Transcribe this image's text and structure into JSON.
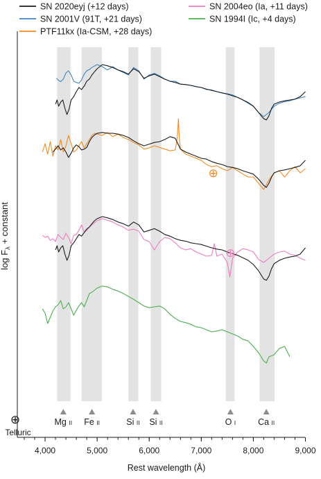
{
  "chart_data": {
    "type": "line",
    "xlabel": "Rest wavelength (Å)",
    "ylabel_main": "log F",
    "ylabel_subscript": "λ",
    "ylabel_rest": " + constant",
    "xlim": [
      3600,
      9100
    ],
    "xticks": [
      {
        "value": 4000,
        "label": "4,000"
      },
      {
        "value": 5000,
        "label": "5,000"
      },
      {
        "value": 6000,
        "label": "6,000"
      },
      {
        "value": 7000,
        "label": "7,000"
      },
      {
        "value": 8000,
        "label": "8,000"
      },
      {
        "value": 9000,
        "label": "9,000"
      }
    ],
    "minor_xtick_step": 200,
    "legend": [
      {
        "label": "SN 2020eyj (+12 days)",
        "color": "#1a1a1a",
        "column": "left"
      },
      {
        "label": "SN 2001V (91T, +21 days)",
        "color": "#3f86c4",
        "column": "left"
      },
      {
        "label": "PTF11kx (Ia-CSM, +28 days)",
        "color": "#f28a1e",
        "column": "left"
      },
      {
        "label": "SN 2004eo (Ia, +11 days)",
        "color": "#f07cc0",
        "column": "right"
      },
      {
        "label": "SN 1994I (Ic, +4 days)",
        "color": "#4cae4f",
        "column": "right"
      }
    ],
    "bands": [
      {
        "x0": 4230,
        "x1": 4490
      },
      {
        "x0": 4700,
        "x1": 5090
      },
      {
        "x0": 5600,
        "x1": 5790
      },
      {
        "x0": 6030,
        "x1": 6230
      },
      {
        "x0": 7470,
        "x1": 7640
      },
      {
        "x0": 8120,
        "x1": 8410
      }
    ],
    "ion_labels": [
      {
        "element": "Mg",
        "ion": "II",
        "x": 4350
      },
      {
        "element": "Fe",
        "ion": "II",
        "x": 4900
      },
      {
        "element": "Si",
        "ion": "II",
        "x": 5690
      },
      {
        "element": "Si",
        "ion": "II",
        "x": 6130
      },
      {
        "element": "O",
        "ion": "I",
        "x": 7560
      },
      {
        "element": "Ca",
        "ion": "II",
        "x": 8250
      }
    ],
    "telluric_label": "Telluric",
    "telluric_symbol": "⊕",
    "telluric_marks": [
      {
        "spectrum": "PTF11kx",
        "x": 7230,
        "color": "#f28a1e"
      },
      {
        "spectrum": "SN 2004eo",
        "x": 7560,
        "color": "#f07cc0"
      }
    ],
    "series": [
      {
        "name": "SN 2001V",
        "color": "#3f86c4",
        "x": [
          4220,
          4250,
          4300,
          4350,
          4400,
          4450,
          4500,
          4550,
          4600,
          4650,
          4700,
          4750,
          4800,
          4850,
          4900,
          5000,
          5100,
          5200,
          5300,
          5400,
          5500,
          5600,
          5700,
          5800,
          5900,
          6000,
          6100,
          6200,
          6300,
          6400,
          6500,
          6600,
          6700,
          6800,
          6900,
          7000,
          7100,
          7200,
          7300,
          7400,
          7500,
          7600,
          7700,
          7800,
          7900,
          8000,
          8100,
          8200,
          8300,
          8400,
          8500,
          8600,
          8700,
          8800,
          8900,
          9000
        ],
        "y": [
          0.62,
          0.58,
          0.54,
          0.6,
          0.75,
          0.8,
          0.7,
          0.55,
          0.52,
          0.5,
          0.58,
          0.72,
          0.8,
          0.83,
          0.88,
          0.95,
          0.9,
          0.82,
          0.9,
          0.82,
          0.76,
          0.7,
          0.88,
          0.8,
          0.6,
          0.7,
          0.74,
          0.68,
          0.6,
          0.55,
          0.55,
          0.48,
          0.47,
          0.45,
          0.42,
          0.4,
          0.35,
          0.34,
          0.3,
          0.27,
          0.25,
          0.22,
          0.16,
          0.1,
          0.02,
          -0.05,
          -0.2,
          -0.3,
          -0.2,
          -0.05,
          0.02,
          0.06,
          0.08,
          0.12,
          0.15,
          0.18
        ]
      },
      {
        "name": "SN 2020eyj",
        "color": "#1a1a1a",
        "x": [
          4200,
          4230,
          4260,
          4300,
          4340,
          4380,
          4420,
          4460,
          4500,
          4550,
          4600,
          4650,
          4700,
          4760,
          4800,
          4850,
          4900,
          4950,
          5000,
          5100,
          5200,
          5300,
          5400,
          5500,
          5600,
          5700,
          5800,
          5900,
          6000,
          6100,
          6200,
          6300,
          6400,
          6500,
          6600,
          6700,
          6800,
          6900,
          7000,
          7100,
          7200,
          7300,
          7400,
          7500,
          7600,
          7700,
          7800,
          7900,
          8000,
          8100,
          8200,
          8250,
          8300,
          8350,
          8400,
          8500,
          8600,
          8700,
          8800,
          8900,
          9000
        ],
        "y": [
          0.0,
          0.1,
          -0.05,
          0.05,
          0.1,
          -0.1,
          -0.25,
          -0.12,
          0.1,
          0.18,
          0.3,
          0.4,
          0.35,
          0.45,
          0.55,
          0.6,
          0.7,
          0.78,
          0.85,
          0.95,
          0.92,
          0.88,
          0.82,
          0.78,
          0.72,
          0.85,
          0.78,
          0.62,
          0.68,
          0.72,
          0.66,
          0.6,
          0.55,
          0.52,
          0.48,
          0.47,
          0.45,
          0.42,
          0.4,
          0.36,
          0.33,
          0.3,
          0.27,
          0.24,
          0.2,
          0.16,
          0.1,
          0.04,
          -0.05,
          -0.2,
          -0.35,
          -0.38,
          -0.28,
          -0.1,
          0.0,
          0.05,
          0.08,
          0.1,
          0.12,
          0.18,
          0.3
        ]
      },
      {
        "name": "PTF11kx",
        "color": "#f28a1e",
        "x": [
          3950,
          4000,
          4050,
          4100,
          4150,
          4200,
          4250,
          4300,
          4350,
          4400,
          4450,
          4500,
          4550,
          4600,
          4650,
          4700,
          4750,
          4800,
          4850,
          4900,
          4950,
          5000,
          5100,
          5200,
          5300,
          5400,
          5500,
          5600,
          5700,
          5800,
          5900,
          6000,
          6100,
          6200,
          6300,
          6400,
          6500,
          6540,
          6560,
          6580,
          6600,
          6700,
          6800,
          6900,
          7000,
          7100,
          7200,
          7300,
          7400,
          7500,
          7600,
          7700,
          7800,
          7900,
          8000,
          8100,
          8200,
          8300,
          8400,
          8500,
          8600,
          8700,
          8800,
          8900,
          9000
        ],
        "y": [
          0.55,
          0.75,
          0.5,
          0.8,
          0.45,
          0.7,
          0.6,
          0.85,
          0.55,
          0.7,
          0.95,
          0.75,
          0.55,
          0.6,
          0.7,
          0.8,
          0.65,
          0.75,
          0.85,
          0.95,
          1.0,
          0.98,
          0.95,
          1.02,
          0.92,
          0.98,
          0.9,
          0.85,
          0.78,
          0.72,
          0.62,
          0.65,
          0.7,
          0.66,
          0.62,
          0.58,
          0.6,
          0.9,
          1.35,
          0.85,
          0.62,
          0.5,
          0.45,
          0.4,
          0.35,
          0.25,
          0.2,
          0.22,
          0.15,
          0.1,
          0.18,
          0.1,
          0.02,
          -0.05,
          -0.05,
          -0.2,
          -0.35,
          -0.12,
          0.05,
          0.1,
          -0.05,
          0.1,
          0.2,
          0.05,
          0.15
        ]
      },
      {
        "name": "SN 2020eyj",
        "color": "#1a1a1a",
        "x": [
          4150,
          4200,
          4250,
          4300,
          4350,
          4400,
          4450,
          4500,
          4550,
          4600,
          4650,
          4700,
          4750,
          4800,
          4850,
          4900,
          4950,
          5000,
          5100,
          5200,
          5300,
          5400,
          5500,
          5600,
          5700,
          5800,
          5900,
          6000,
          6100,
          6200,
          6300,
          6400,
          6500,
          6600,
          6700,
          6800,
          6900,
          7000,
          7100,
          7200,
          7300,
          7400,
          7500,
          7600,
          7700,
          7800,
          7900,
          8000,
          8100,
          8200,
          8250,
          8300,
          8350,
          8400,
          8500,
          8600,
          8700,
          8800,
          8900,
          9000
        ],
        "y": [
          0.55,
          0.62,
          0.7,
          0.6,
          0.65,
          0.55,
          0.42,
          0.52,
          0.65,
          0.72,
          0.68,
          0.6,
          0.62,
          0.66,
          0.8,
          0.9,
          0.96,
          1.0,
          1.02,
          1.0,
          1.0,
          0.98,
          0.95,
          0.9,
          0.82,
          0.75,
          0.7,
          0.74,
          0.78,
          0.8,
          0.85,
          0.92,
          0.88,
          0.62,
          0.55,
          0.5,
          0.45,
          0.4,
          0.38,
          0.32,
          0.28,
          0.25,
          0.2,
          0.18,
          0.15,
          0.1,
          0.06,
          0.02,
          -0.1,
          -0.25,
          -0.3,
          -0.2,
          -0.05,
          0.05,
          0.1,
          0.12,
          0.15,
          0.18,
          0.22,
          0.35
        ]
      },
      {
        "name": "SN 2004eo",
        "color": "#f07cc0",
        "x": [
          3950,
          4000,
          4050,
          4100,
          4150,
          4200,
          4250,
          4300,
          4350,
          4400,
          4450,
          4500,
          4550,
          4600,
          4650,
          4700,
          4750,
          4800,
          4850,
          4900,
          5000,
          5100,
          5200,
          5300,
          5400,
          5500,
          5600,
          5700,
          5800,
          5900,
          6000,
          6100,
          6200,
          6300,
          6400,
          6500,
          6600,
          6700,
          6800,
          6900,
          7000,
          7100,
          7200,
          7250,
          7300,
          7400,
          7500,
          7550,
          7600,
          7700,
          7800,
          7900,
          8000,
          8100,
          8200,
          8300,
          8400,
          8500,
          8600,
          8700,
          8800,
          8900,
          9000
        ],
        "y": [
          0.6,
          0.55,
          0.58,
          0.48,
          0.52,
          0.45,
          0.62,
          0.55,
          0.5,
          0.65,
          0.55,
          0.4,
          0.6,
          0.62,
          0.72,
          0.85,
          0.68,
          0.72,
          0.8,
          0.85,
          0.95,
          1.0,
          0.96,
          0.92,
          0.85,
          0.8,
          0.72,
          0.75,
          0.7,
          0.5,
          0.45,
          0.25,
          0.45,
          0.55,
          0.52,
          0.42,
          0.3,
          0.25,
          0.28,
          0.2,
          0.15,
          0.1,
          0.12,
          0.4,
          0.1,
          0.15,
          -0.05,
          -0.4,
          0.05,
          0.2,
          0.28,
          0.25,
          0.2,
          0.02,
          -0.05,
          0.05,
          0.15,
          0.2,
          0.22,
          0.15,
          0.12,
          0.05,
          0.0
        ]
      },
      {
        "name": "SN 2020eyj",
        "color": "#1a1a1a",
        "x": [
          4200,
          4230,
          4260,
          4300,
          4340,
          4380,
          4420,
          4460,
          4500,
          4550,
          4600,
          4650,
          4700,
          4760,
          4800,
          4850,
          4900,
          4950,
          5000,
          5100,
          5200,
          5300,
          5400,
          5500,
          5600,
          5700,
          5800,
          5900,
          6000,
          6100,
          6200,
          6300,
          6400,
          6500,
          6600,
          6700,
          6800,
          6900,
          7000,
          7100,
          7200,
          7300,
          7400,
          7500,
          7600,
          7700,
          7800,
          7900,
          8000,
          8100,
          8200,
          8250,
          8300,
          8350,
          8400,
          8500,
          8600,
          8700,
          8800,
          8900,
          9000
        ],
        "y": [
          0.25,
          0.35,
          0.2,
          0.3,
          0.35,
          0.15,
          0.0,
          0.12,
          0.35,
          0.42,
          0.52,
          0.62,
          0.58,
          0.68,
          0.75,
          0.8,
          0.88,
          0.95,
          1.0,
          1.05,
          1.02,
          0.98,
          0.92,
          0.88,
          0.82,
          0.92,
          0.85,
          0.68,
          0.72,
          0.76,
          0.7,
          0.62,
          0.58,
          0.52,
          0.48,
          0.46,
          0.42,
          0.4,
          0.38,
          0.34,
          0.3,
          0.27,
          0.25,
          0.2,
          0.16,
          0.12,
          0.06,
          0.0,
          -0.1,
          -0.25,
          -0.45,
          -0.48,
          -0.38,
          -0.2,
          -0.08,
          0.0,
          0.05,
          0.08,
          0.1,
          0.15,
          0.3
        ]
      },
      {
        "name": "SN 1994I",
        "color": "#4cae4f",
        "x": [
          3950,
          4000,
          4050,
          4100,
          4150,
          4200,
          4250,
          4300,
          4350,
          4400,
          4450,
          4500,
          4550,
          4600,
          4650,
          4700,
          4750,
          4800,
          4850,
          4900,
          5000,
          5100,
          5200,
          5300,
          5400,
          5500,
          5600,
          5700,
          5800,
          5900,
          6000,
          6100,
          6200,
          6300,
          6400,
          6500,
          6600,
          6700,
          6800,
          6900,
          7000,
          7100,
          7200,
          7300,
          7400,
          7500,
          7600,
          7700,
          7800,
          7900,
          8000,
          8100,
          8200,
          8250,
          8300,
          8400,
          8500,
          8600,
          8700
        ],
        "y": [
          0.55,
          0.45,
          0.2,
          0.35,
          0.5,
          0.6,
          0.65,
          0.75,
          0.55,
          0.6,
          0.7,
          0.55,
          0.4,
          0.52,
          0.62,
          0.7,
          0.6,
          0.75,
          0.92,
          0.95,
          1.05,
          1.1,
          1.08,
          1.02,
          0.98,
          0.92,
          0.85,
          0.78,
          0.7,
          0.62,
          0.58,
          0.6,
          0.62,
          0.55,
          0.42,
          0.32,
          0.25,
          0.22,
          0.18,
          0.12,
          0.1,
          0.05,
          0.0,
          0.02,
          0.05,
          0.0,
          -0.05,
          -0.1,
          -0.18,
          -0.22,
          -0.35,
          -0.5,
          -0.7,
          -0.75,
          -0.6,
          -0.55,
          -0.4,
          -0.35,
          -0.6
        ]
      }
    ]
  }
}
